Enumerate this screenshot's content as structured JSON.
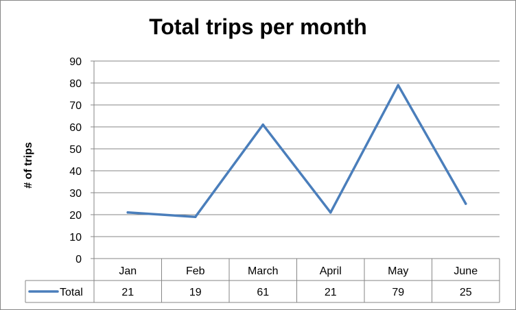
{
  "chart_data": {
    "type": "line",
    "title": "Total trips per month",
    "xlabel": "",
    "ylabel": "# of trips",
    "categories": [
      "Jan",
      "Feb",
      "March",
      "April",
      "May",
      "June"
    ],
    "series": [
      {
        "name": "Total",
        "values": [
          21,
          19,
          61,
          21,
          79,
          25
        ],
        "color": "#4a7ebb"
      }
    ],
    "ylim": [
      0,
      90
    ],
    "ytick_step": 10,
    "grid": true,
    "legend": "data-table",
    "data_table": true
  }
}
